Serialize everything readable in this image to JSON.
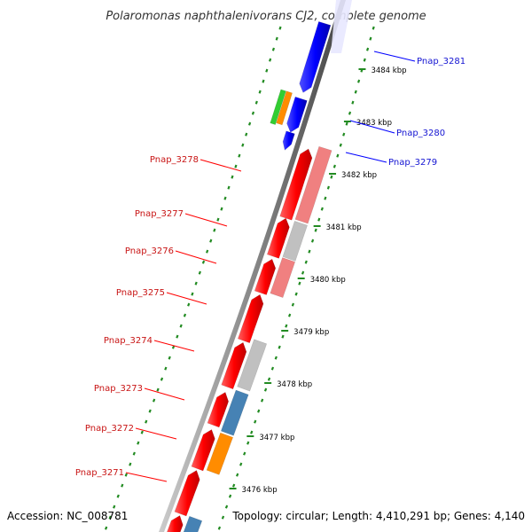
{
  "title": "Polaromonas naphthalenivorans CJ2, complete genome",
  "footer": {
    "accession": "Accession: NC_008781",
    "topology": "Topology: circular; Length: 4,410,291 bp; Genes: 4,140"
  },
  "colors": {
    "forward_gene": "#ff0000",
    "reverse_gene": "#0000ff",
    "backbone": "#888888",
    "tick": "#228b22",
    "label_blue": "#1414d2",
    "label_red": "#c81414",
    "cds_light_red": "#f08080",
    "cds_gray": "#c0c0c0",
    "cds_steel": "#4682b4",
    "cds_orange": "#ff8c00",
    "cds_green": "#32cd32"
  },
  "ticks": [
    {
      "label": "3484 kbp"
    },
    {
      "label": "3483 kbp"
    },
    {
      "label": "3482 kbp"
    },
    {
      "label": "3481 kbp"
    },
    {
      "label": "3480 kbp"
    },
    {
      "label": "3479 kbp"
    },
    {
      "label": "3478 kbp"
    },
    {
      "label": "3477 kbp"
    },
    {
      "label": "3476 kbp"
    }
  ],
  "genes_reverse": [
    {
      "name": "Pnap_3281"
    },
    {
      "name": "Pnap_3280"
    },
    {
      "name": "Pnap_3279"
    }
  ],
  "genes_forward": [
    {
      "name": "Pnap_3278"
    },
    {
      "name": "Pnap_3277"
    },
    {
      "name": "Pnap_3276"
    },
    {
      "name": "Pnap_3275"
    },
    {
      "name": "Pnap_3274"
    },
    {
      "name": "Pnap_3273"
    },
    {
      "name": "Pnap_3272"
    },
    {
      "name": "Pnap_3271"
    }
  ]
}
